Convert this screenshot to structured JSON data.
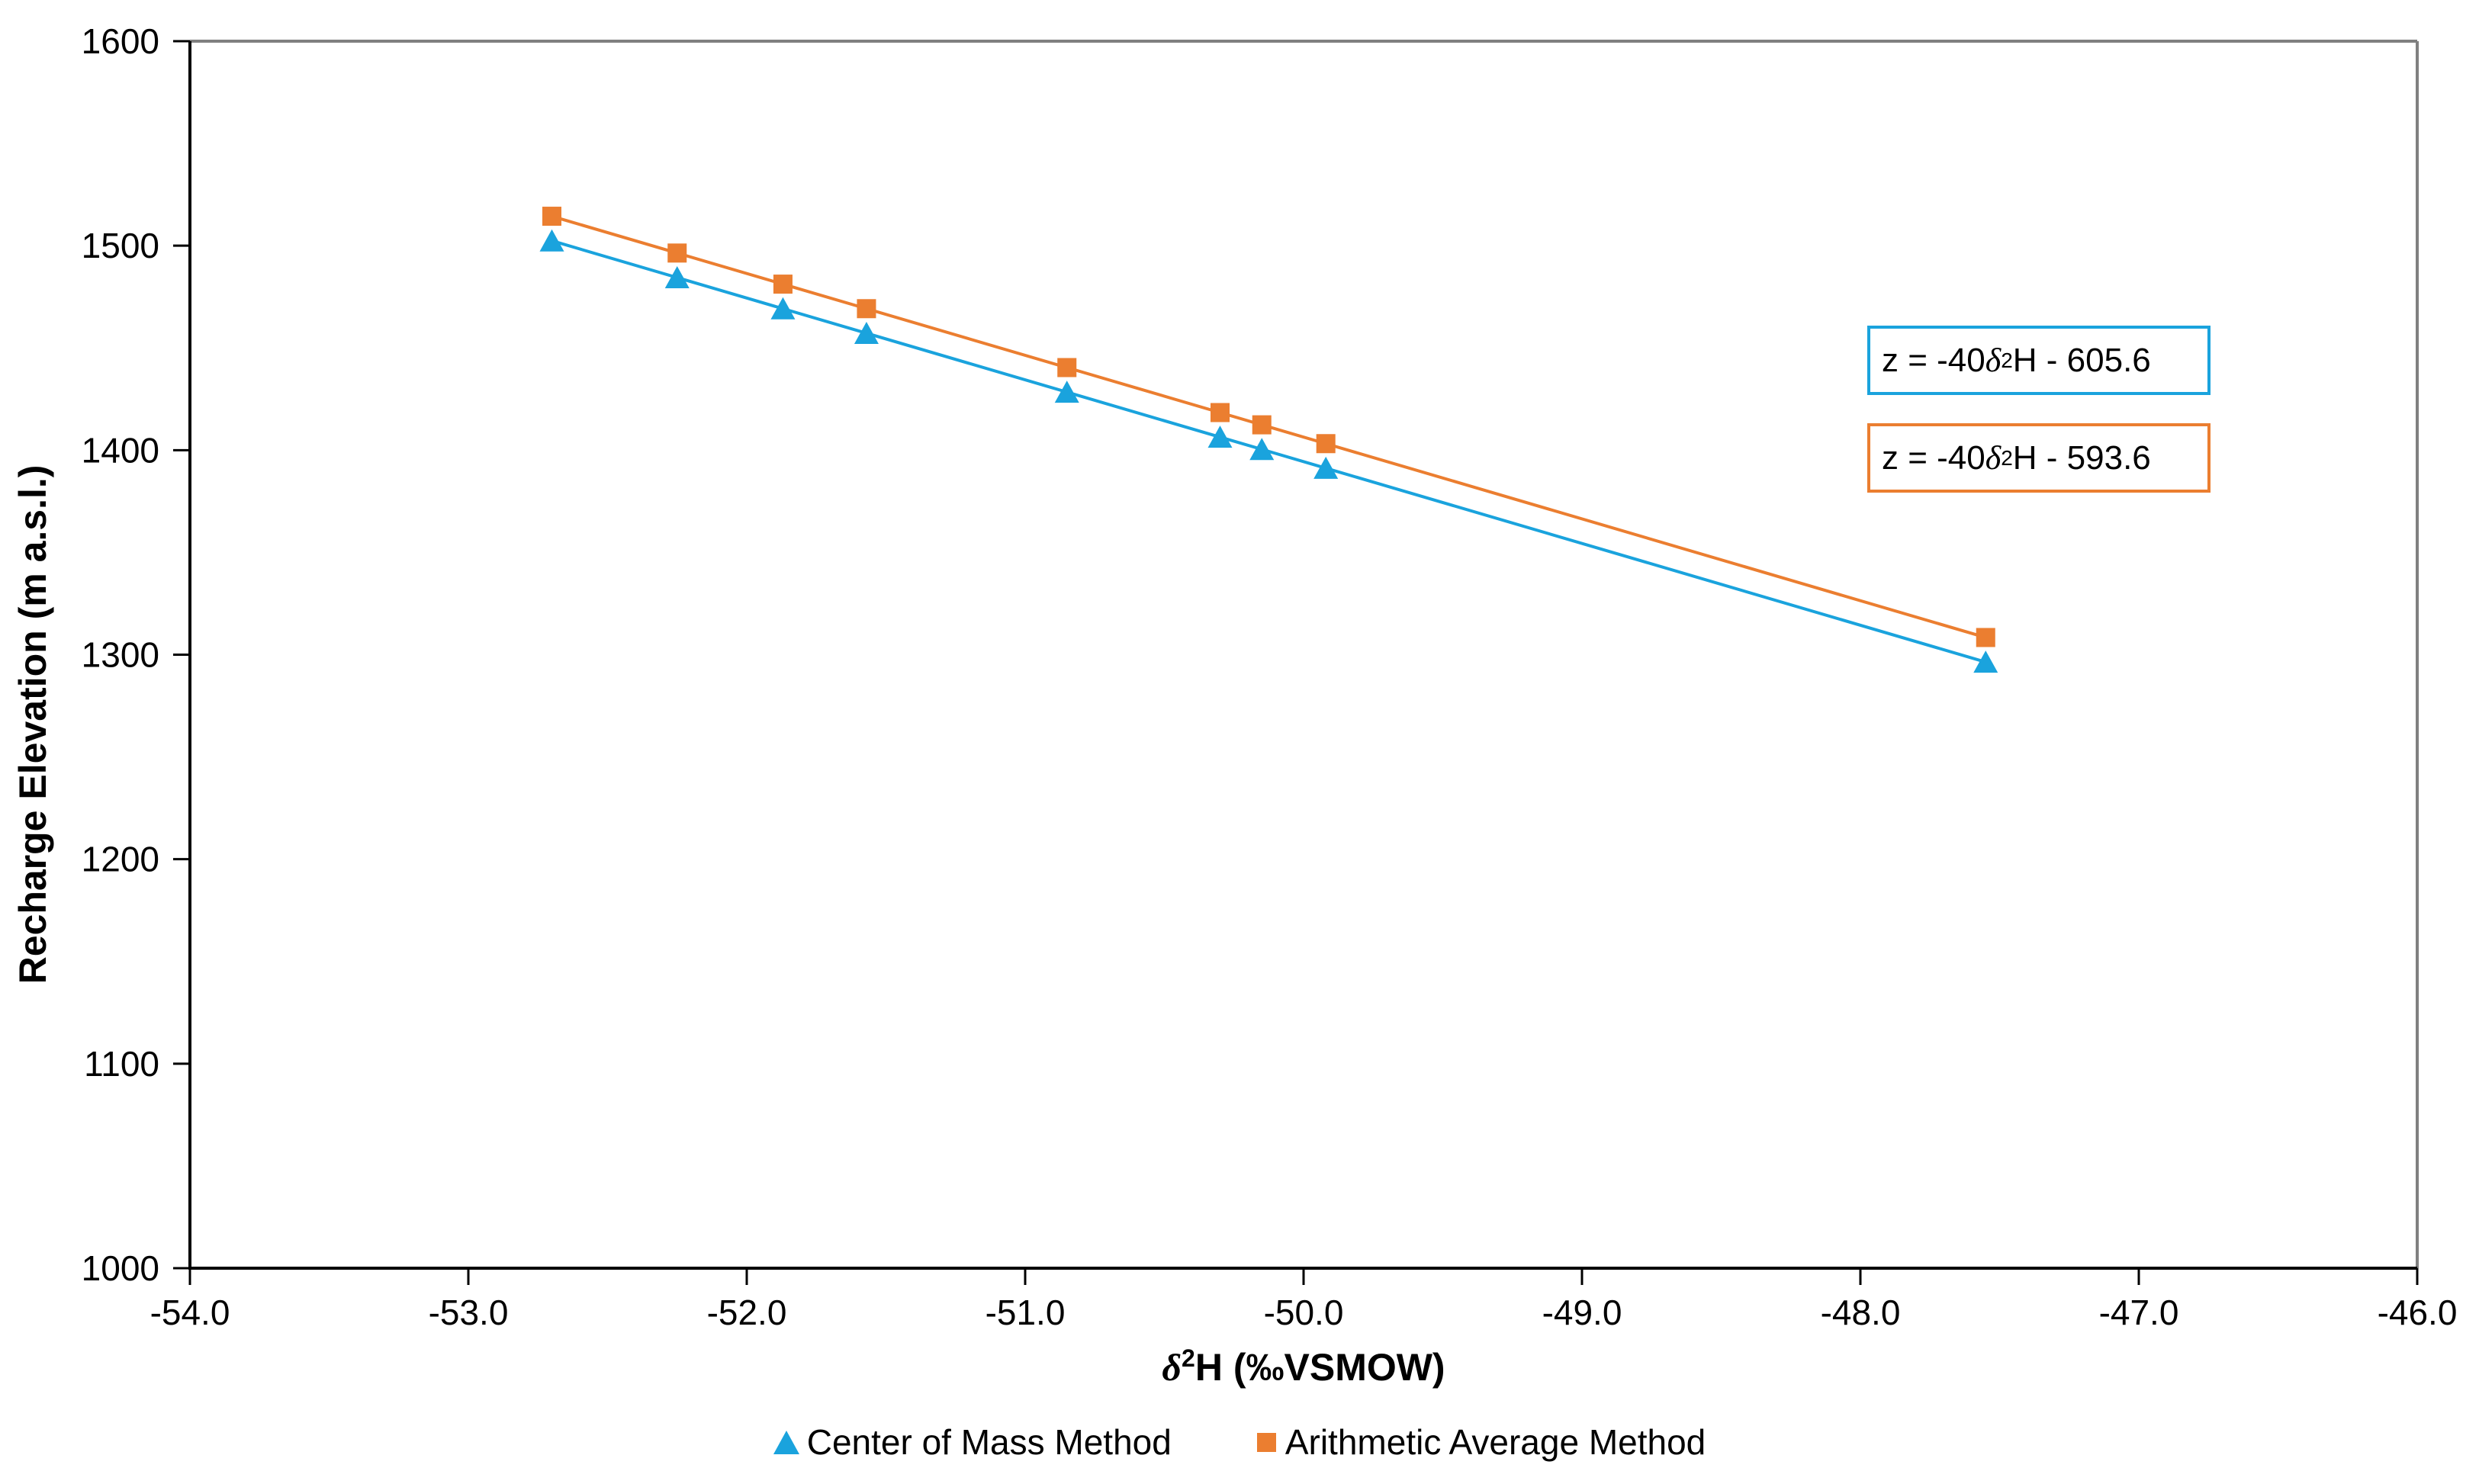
{
  "chart_data": {
    "type": "scatter",
    "title": "",
    "xlabel": "δ²H (‰VSMOW)",
    "ylabel": "Recharge Elevation (m a.s.l.)",
    "xlim": [
      -54.0,
      -46.0
    ],
    "ylim": [
      1000,
      1600
    ],
    "x_tick_labels": [
      "-54.0",
      "-53.0",
      "-52.0",
      "-51.0",
      "-50.0",
      "-49.0",
      "-48.0",
      "-47.0",
      "-46.0"
    ],
    "x_ticks": [
      -54,
      -53,
      -52,
      -51,
      -50,
      -49,
      -48,
      -47,
      -46
    ],
    "y_tick_labels": [
      "1000",
      "1100",
      "1200",
      "1300",
      "1400",
      "1500",
      "1600"
    ],
    "y_ticks": [
      1000,
      1100,
      1200,
      1300,
      1400,
      1500,
      1600
    ],
    "grid": false,
    "legend_position": "bottom",
    "x": [
      -52.7,
      -52.25,
      -51.87,
      -51.57,
      -50.85,
      -50.3,
      -50.15,
      -49.92,
      -47.55
    ],
    "series": [
      {
        "name": "Center of Mass Method",
        "marker": "triangle",
        "color": "#1AA3DD",
        "values": [
          1502.4,
          1484.4,
          1469.2,
          1457.2,
          1428.4,
          1406.4,
          1400.4,
          1391.2,
          1296.4
        ],
        "trendline_equation": "z = -40 δ²H - 605.6"
      },
      {
        "name": "Arithmetic Average Method",
        "marker": "square",
        "color": "#EB7E30",
        "values": [
          1514.4,
          1496.4,
          1481.2,
          1469.2,
          1440.4,
          1418.4,
          1412.4,
          1403.2,
          1308.4
        ],
        "trendline_equation": "z = -40 δ²H - 593.6"
      }
    ],
    "annotations": [
      {
        "text": "z = -40 δ²H - 605.6",
        "border_color": "#1AA3DD"
      },
      {
        "text": "z = -40 δ²H - 593.6",
        "border_color": "#EB7E30"
      }
    ],
    "axis_color": "#000000",
    "frame_color": "#808080"
  },
  "legend": {
    "items": [
      {
        "label": "Center of Mass Method"
      },
      {
        "label": "Arithmetic Average Method"
      }
    ]
  }
}
